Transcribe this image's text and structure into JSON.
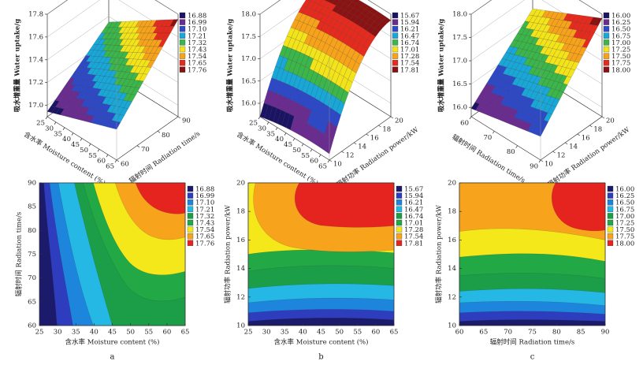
{
  "chart_data": [
    {
      "type": "surface",
      "z_label": "吸水增重量 Water uptake/g",
      "x_label": "含水率 Moisture content (%)",
      "y_label": "辐射时间 Radiation time/s",
      "xlim": [
        25,
        65
      ],
      "xticks": [
        25,
        30,
        35,
        40,
        45,
        50,
        55,
        60,
        65
      ],
      "ylim": [
        60,
        90
      ],
      "yticks": [
        60,
        70,
        80,
        90
      ],
      "zlim": [
        16.9,
        17.8
      ],
      "zticks": [
        {
          "value": 17,
          "label": "17.0"
        },
        17.2,
        17.4,
        17.6,
        17.8
      ],
      "legend_levels": [
        16.88,
        16.99,
        {
          "value": 17.1,
          "label": "17.10"
        },
        17.21,
        17.32,
        17.43,
        17.54,
        17.65,
        17.76
      ],
      "colors": [
        "#1b1464",
        "#6b2c91",
        "#2e49c8",
        "#19a7d8",
        "#3cb54a",
        "#f2e31a",
        "#f7a21b",
        "#e62b1e",
        "#8b1212"
      ]
    },
    {
      "type": "surface",
      "z_label": "吸水增重量 Water uptake/g",
      "x_label": "含水率 Moisture content (%)",
      "y_label": "辐射功率 Radiation power/kW",
      "xlim": [
        25,
        65
      ],
      "xticks": [
        25,
        30,
        35,
        40,
        45,
        50,
        55,
        60,
        65
      ],
      "ylim": [
        10,
        20
      ],
      "yticks": [
        10,
        12,
        14,
        16,
        18,
        20
      ],
      "zlim": [
        15.7,
        18
      ],
      "zticks": [
        {
          "value": 16,
          "label": "16.0"
        },
        16.5,
        {
          "value": 17,
          "label": "17.0"
        },
        17.5,
        {
          "value": 18,
          "label": "18.0"
        }
      ],
      "legend_levels": [
        15.67,
        15.94,
        16.21,
        16.47,
        16.74,
        17.01,
        17.28,
        17.54,
        17.81
      ],
      "colors": [
        "#1b1464",
        "#6b2c91",
        "#2e49c8",
        "#19a7d8",
        "#3cb54a",
        "#f2e31a",
        "#f7a21b",
        "#e62b1e",
        "#8b1212"
      ]
    },
    {
      "type": "surface",
      "z_label": "吸水增重量 Water uptake/g",
      "x_label": "辐射时间 Radiation time/s",
      "y_label": "辐射功率 Radiation power/kW",
      "xlim": [
        60,
        90
      ],
      "xticks": [
        60,
        70,
        80,
        90
      ],
      "ylim": [
        10,
        20
      ],
      "yticks": [
        10,
        12,
        14,
        16,
        18,
        20
      ],
      "zlim": [
        15.8,
        18
      ],
      "zticks": [
        {
          "value": 16,
          "label": "16.0"
        },
        16.5,
        {
          "value": 17,
          "label": "17.0"
        },
        17.5,
        {
          "value": 18,
          "label": "18.0"
        }
      ],
      "legend_levels": [
        {
          "value": 16,
          "label": "16.00"
        },
        16.25,
        {
          "value": 16.5,
          "label": "16.50"
        },
        16.75,
        {
          "value": 17,
          "label": "17.00"
        },
        17.25,
        {
          "value": 17.5,
          "label": "17.50"
        },
        17.75,
        {
          "value": 18,
          "label": "18.00"
        }
      ],
      "colors": [
        "#1b1464",
        "#6b2c91",
        "#2e49c8",
        "#19a7d8",
        "#3cb54a",
        "#f2e31a",
        "#f7a21b",
        "#e62b1e",
        "#8b1212"
      ]
    },
    {
      "type": "contour",
      "panel_label": "a",
      "x_label": "含水率 Moisture content (%)",
      "y_label": "辐射时间 Radiation time/s",
      "xlim": [
        25,
        65
      ],
      "xticks": [
        25,
        30,
        35,
        40,
        45,
        50,
        55,
        60,
        65
      ],
      "ylim": [
        60,
        90
      ],
      "yticks": [
        60,
        65,
        70,
        75,
        80,
        85,
        90
      ],
      "legend_levels": [
        16.88,
        16.99,
        {
          "value": 17.1,
          "label": "17.10"
        },
        17.21,
        17.32,
        17.43,
        17.54,
        17.65,
        17.76
      ],
      "colors": [
        "#1b1a6b",
        "#2d3dbd",
        "#1d86dc",
        "#25b8e4",
        "#1c9e48",
        "#22a845",
        "#f5e81a",
        "#f7a41c",
        "#e52420"
      ]
    },
    {
      "type": "contour",
      "panel_label": "b",
      "x_label": "含水率 Moisture content (%)",
      "y_label": "辐射功率 Radiation power/kW",
      "xlim": [
        25,
        65
      ],
      "xticks": [
        25,
        30,
        35,
        40,
        45,
        50,
        55,
        60,
        65
      ],
      "ylim": [
        10,
        20
      ],
      "yticks": [
        10,
        12,
        14,
        16,
        18,
        20
      ],
      "legend_levels": [
        15.67,
        15.94,
        16.21,
        16.47,
        16.74,
        17.01,
        17.28,
        17.54,
        17.81
      ],
      "colors": [
        "#1b1a6b",
        "#2d3dbd",
        "#1d86dc",
        "#25b8e4",
        "#1c9e48",
        "#22a845",
        "#f5e81a",
        "#f7a41c",
        "#e52420"
      ]
    },
    {
      "type": "contour",
      "panel_label": "c",
      "x_label": "辐射时间 Radiation time/s",
      "y_label": "辐射功率 Radiation power/kW",
      "xlim": [
        60,
        90
      ],
      "xticks": [
        60,
        65,
        70,
        75,
        80,
        85,
        90
      ],
      "ylim": [
        10,
        20
      ],
      "yticks": [
        10,
        12,
        14,
        16,
        18,
        20
      ],
      "legend_levels": [
        {
          "value": 16,
          "label": "16.00"
        },
        16.25,
        {
          "value": 16.5,
          "label": "16.50"
        },
        16.75,
        {
          "value": 17,
          "label": "17.00"
        },
        17.25,
        {
          "value": 17.5,
          "label": "17.50"
        },
        17.75,
        {
          "value": 18,
          "label": "18.00"
        }
      ],
      "colors": [
        "#1b1a6b",
        "#2d3dbd",
        "#1d86dc",
        "#25b8e4",
        "#1c9e48",
        "#22a845",
        "#f5e81a",
        "#f7a41c",
        "#e52420"
      ]
    }
  ]
}
